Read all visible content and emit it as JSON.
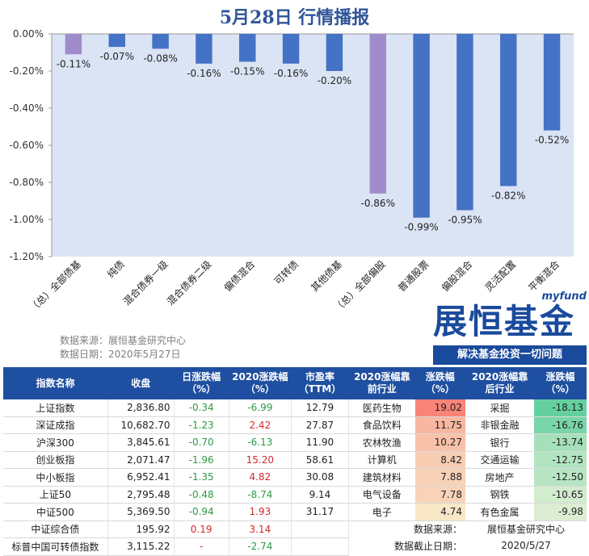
{
  "header": {
    "title": "5月28日 行情播报"
  },
  "chart_data": {
    "type": "bar",
    "categories": [
      "（总）全部债基",
      "纯债",
      "混合债券一级",
      "混合债券二级",
      "偏债混合",
      "可转债",
      "其他债基",
      "（总）全部偏股",
      "普通股票",
      "偏股混合",
      "灵活配置",
      "平衡混合"
    ],
    "values": [
      -0.11,
      -0.07,
      -0.08,
      -0.16,
      -0.15,
      -0.16,
      -0.2,
      -0.86,
      -0.99,
      -0.95,
      -0.82,
      -0.52
    ],
    "value_labels": [
      "-0.11%",
      "-0.07%",
      "-0.08%",
      "-0.16%",
      "-0.15%",
      "-0.16%",
      "-0.20%",
      "-0.86%",
      "-0.99%",
      "-0.95%",
      "-0.82%",
      "-0.52%"
    ],
    "highlight_indices": [
      0,
      7
    ],
    "ylim": [
      -1.2,
      0
    ],
    "yticks": [
      0,
      -0.2,
      -0.4,
      -0.6,
      -0.8,
      -1.0,
      -1.2
    ],
    "ytick_labels": [
      "0.00%",
      "-0.20%",
      "-0.40%",
      "-0.60%",
      "-0.80%",
      "-1.00%",
      "-1.20%"
    ],
    "colors": {
      "bar": "#4472c4",
      "highlight": "#a08ccc",
      "plot_bg": "#dbe4f4"
    },
    "grid": false
  },
  "source": {
    "line1": "数据来源：展恒基金研究中心",
    "line2": "数据日期：2020年5月27日"
  },
  "logo": {
    "small": "myfund",
    "big": "展恒基金",
    "slogan": "解决基金投资一切问题"
  },
  "index_table": {
    "headers": [
      "指数名称",
      "收盘",
      "日涨跌幅（%）",
      "2020涨跌幅（%）",
      "市盈率（TTM）"
    ],
    "rows": [
      [
        "上证指数",
        "2,836.80",
        "-0.34",
        "-6.99",
        "12.79"
      ],
      [
        "深证成指",
        "10,682.70",
        "-1.23",
        "2.42",
        "27.87"
      ],
      [
        "沪深300",
        "3,845.61",
        "-0.70",
        "-6.13",
        "11.90"
      ],
      [
        "创业板指",
        "2,071.47",
        "-1.96",
        "15.20",
        "58.61"
      ],
      [
        "中小板指",
        "6,952.41",
        "-1.35",
        "4.82",
        "30.08"
      ],
      [
        "上证50",
        "2,795.48",
        "-0.48",
        "-8.74",
        "9.14"
      ],
      [
        "中证500",
        "5,369.50",
        "-0.94",
        "1.93",
        "31.17"
      ],
      [
        "中证综合债",
        "195.92",
        "0.19",
        "3.14",
        ""
      ],
      [
        "标普中国可转债指数",
        "3,115.22",
        "-",
        "-2.74",
        ""
      ]
    ]
  },
  "sector_table": {
    "headers": [
      "2020涨幅靠前行业",
      "涨跌幅（%）",
      "2020涨幅靠后行业",
      "涨跌幅（%）"
    ],
    "rows": [
      [
        "医药生物",
        "19.02",
        "采掘",
        "-18.13"
      ],
      [
        "食品饮料",
        "11.75",
        "非银金融",
        "-16.76"
      ],
      [
        "农林牧渔",
        "10.27",
        "银行",
        "-13.74"
      ],
      [
        "计算机",
        "8.42",
        "交通运输",
        "-12.75"
      ],
      [
        "建筑材料",
        "7.88",
        "房地产",
        "-12.50"
      ],
      [
        "电气设备",
        "7.78",
        "钢铁",
        "-10.65"
      ],
      [
        "电子",
        "4.74",
        "有色金属",
        "-9.98"
      ]
    ],
    "footer": [
      [
        "数据来源：",
        "展恒基金研究中心"
      ],
      [
        "数据截止日期：",
        "2020/5/27"
      ]
    ]
  }
}
